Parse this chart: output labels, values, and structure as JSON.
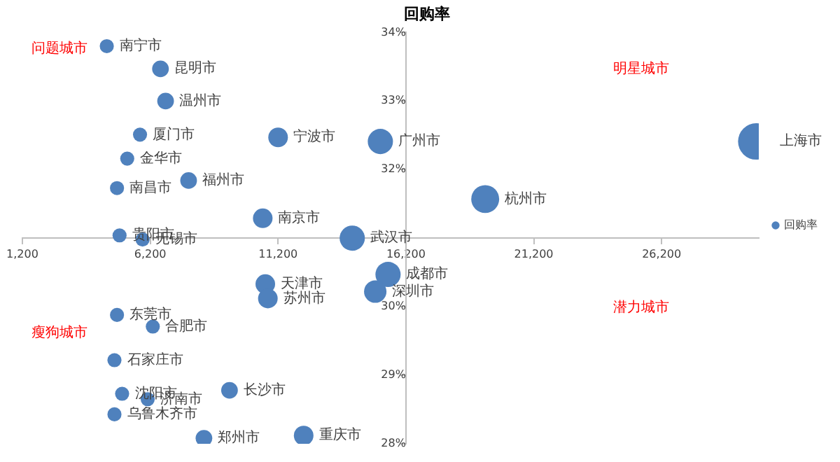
{
  "chart_data": {
    "type": "bubble",
    "title": "回购率",
    "series": [
      {
        "name": "回购率",
        "color": "#4f81bd",
        "value_labels": [
          "南宁市",
          "昆明市",
          "温州市",
          "厦门市",
          "金华市",
          "南昌市",
          "福州市",
          "宁波市",
          "广州市",
          "南京市",
          "上海市",
          "杭州市",
          "贵阳市",
          "无锡市",
          "武汉市",
          "成都市",
          "深圳市",
          "天津市",
          "苏州市",
          "东莞市",
          "合肥市",
          "石家庄市",
          "长沙市",
          "沈阳市",
          "济南市",
          "乌鲁木齐市",
          "郑州市",
          "重庆市"
        ],
        "x": [
          4500,
          6600,
          6800,
          5800,
          5300,
          4900,
          7700,
          11200,
          15200,
          10600,
          29900,
          19300,
          5000,
          5900,
          14100,
          15500,
          15000,
          10700,
          10800,
          4900,
          6300,
          4800,
          9300,
          5100,
          6100,
          4800,
          8300,
          12200
        ],
        "values": [
          33.8,
          33.47,
          33.0,
          32.51,
          32.16,
          31.73,
          31.84,
          32.47,
          32.41,
          31.29,
          32.41,
          31.57,
          31.04,
          30.98,
          31.0,
          30.47,
          30.22,
          30.33,
          30.12,
          29.88,
          29.71,
          29.22,
          28.78,
          28.73,
          28.65,
          28.43,
          28.08,
          28.12
        ],
        "sizes": [
          0.15,
          0.21,
          0.21,
          0.15,
          0.15,
          0.15,
          0.21,
          0.29,
          0.48,
          0.29,
          1,
          0.59,
          0.15,
          0.15,
          0.48,
          0.48,
          0.38,
          0.29,
          0.29,
          0.15,
          0.15,
          0.15,
          0.21,
          0.15,
          0.15,
          0.15,
          0.21,
          0.29
        ]
      }
    ],
    "xlim": [
      1200,
      30000
    ],
    "xticks": [
      {
        "value": 1200,
        "label": "1,200"
      },
      {
        "value": 6200,
        "label": "6,200"
      },
      {
        "value": 11200,
        "label": "11,200"
      },
      {
        "value": 16200,
        "label": "16,200"
      },
      {
        "value": 21200,
        "label": "21,200"
      },
      {
        "value": 26200,
        "label": "26,200"
      }
    ],
    "ylim": [
      28,
      34
    ],
    "yticks": [
      {
        "value": 28,
        "label": "28%"
      },
      {
        "value": 29,
        "label": "29%"
      },
      {
        "value": 30,
        "label": "30%"
      },
      {
        "value": 32,
        "label": "32%"
      },
      {
        "value": 33,
        "label": "33%"
      },
      {
        "value": 34,
        "label": "34%"
      }
    ],
    "annotations": [
      "问题城市",
      "明星城市",
      "瘦狗城市",
      "潜力城市"
    ],
    "legend": "right",
    "grid": false
  }
}
